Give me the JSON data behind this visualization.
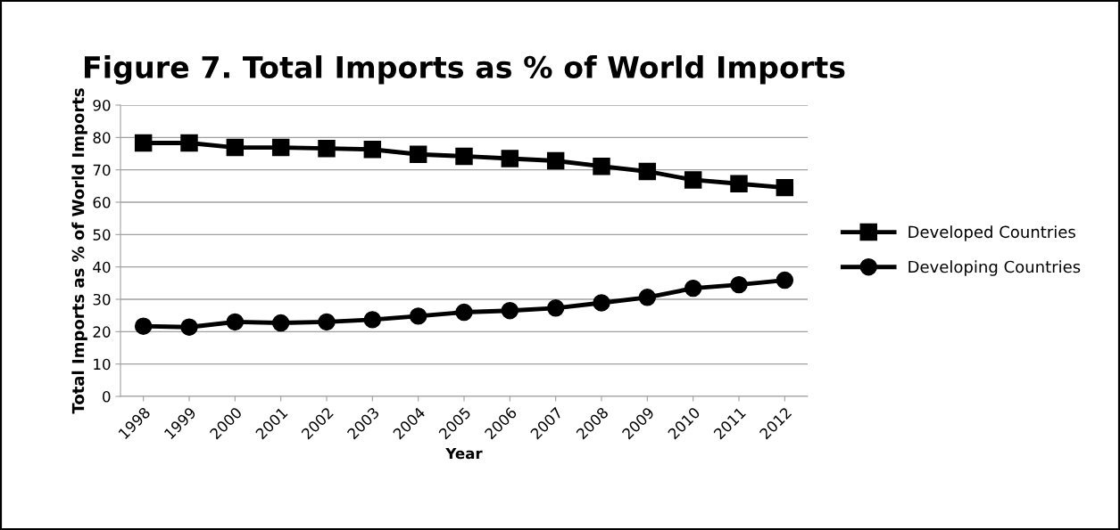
{
  "chart_data": {
    "type": "line",
    "title": "Figure 7. Total Imports as % of World Imports",
    "xlabel": "Year",
    "ylabel": "Total Imports as % of World Imports",
    "categories": [
      "1998",
      "1999",
      "2000",
      "2001",
      "2002",
      "2003",
      "2004",
      "2005",
      "2006",
      "2007",
      "2008",
      "2009",
      "2010",
      "2011",
      "2012"
    ],
    "series": [
      {
        "name": "Developed Countries",
        "color": "#000000",
        "marker": "square",
        "values": [
          78.3,
          78.3,
          76.9,
          76.9,
          76.6,
          76.3,
          74.8,
          74.2,
          73.5,
          72.8,
          71.1,
          69.5,
          66.9,
          65.7,
          64.5
        ]
      },
      {
        "name": "Developing Countries",
        "color": "#000000",
        "marker": "circle",
        "values": [
          21.7,
          21.4,
          23.0,
          22.7,
          23.0,
          23.7,
          24.8,
          26.0,
          26.5,
          27.3,
          28.9,
          30.6,
          33.4,
          34.5,
          35.9
        ]
      }
    ],
    "ylim": [
      0,
      90
    ],
    "yticks": [
      0,
      10,
      20,
      30,
      40,
      50,
      60,
      70,
      80,
      90
    ],
    "grid": "y",
    "legend": "right",
    "line_style": "solid"
  }
}
